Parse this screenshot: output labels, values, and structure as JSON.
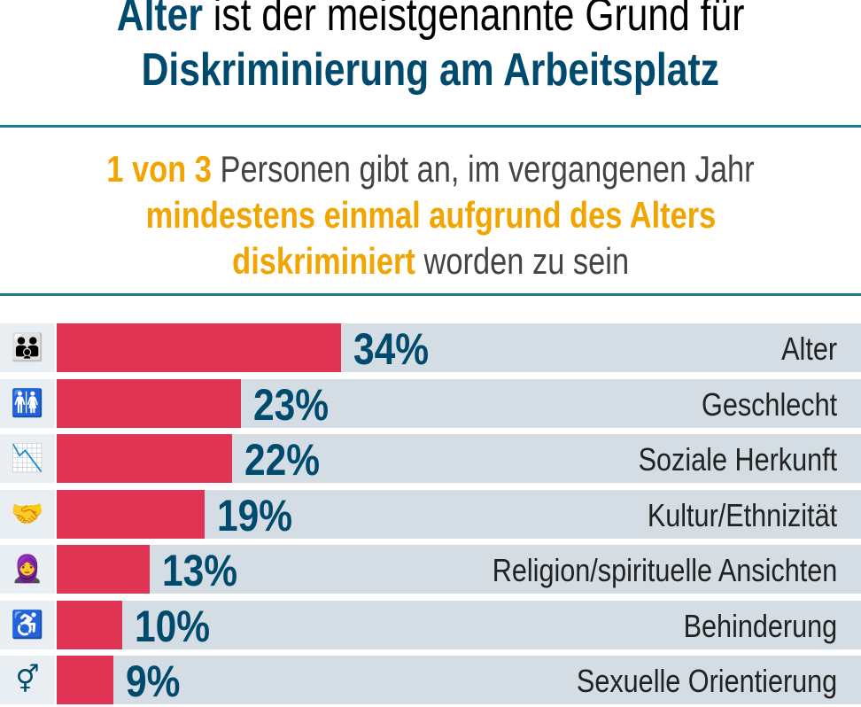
{
  "title": {
    "highlight": "Alter",
    "line1_rest": " ist der meistgenannte Grund für",
    "line2": "Diskriminierung am Arbeitsplatz"
  },
  "subtitle": {
    "part1_highlight": "1 von 3",
    "part1_rest": " Personen gibt an, im vergangenen Jahr",
    "part2_highlight": "mindestens einmal aufgrund des Alters",
    "part3_highlight": "diskriminiert",
    "part3_rest": " worden zu sein"
  },
  "colors": {
    "bar": "#e03455",
    "navy": "#004a6e",
    "orange": "#f2a400",
    "track": "#d3dde3"
  },
  "chart_data": {
    "type": "bar",
    "orientation": "horizontal",
    "unit": "%",
    "categories": [
      "Alter",
      "Geschlecht",
      "Soziale Herkunft",
      "Kultur/Ethnizität",
      "Religion/spirituelle Ansichten",
      "Behinderung",
      "Sexuelle Orientierung"
    ],
    "values": [
      34,
      23,
      22,
      19,
      13,
      10,
      9
    ],
    "labels": [
      "34%",
      "23%",
      "22%",
      "19%",
      "13%",
      "10%",
      "9%"
    ],
    "icons": [
      "family-icon",
      "gender-icon",
      "social-background-icon",
      "hands-together-icon",
      "headscarf-person-icon",
      "wheelchair-icon",
      "gender-symbols-icon"
    ]
  }
}
